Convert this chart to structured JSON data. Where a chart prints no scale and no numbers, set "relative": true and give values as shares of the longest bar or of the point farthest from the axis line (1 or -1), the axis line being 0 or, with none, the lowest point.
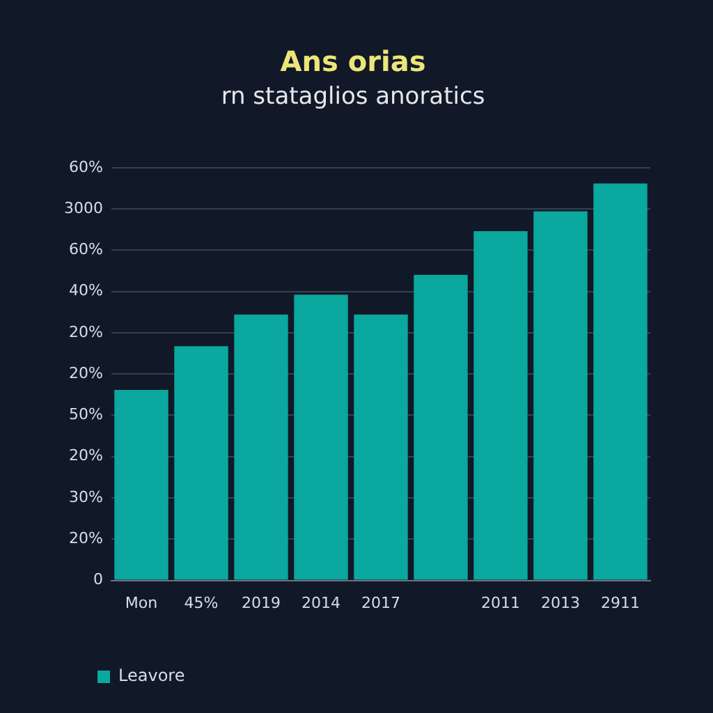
{
  "chart_data": {
    "type": "bar",
    "title": "Ans orias",
    "subtitle": "rn stataglios anoratics",
    "categories": [
      "Mon",
      "45%",
      "2019",
      "2014",
      "2017",
      null,
      "2011",
      "2013",
      "2911"
    ],
    "series": [
      {
        "name": "Leavore",
        "color": "#0aa89f",
        "values": [
          0.48,
          0.59,
          0.67,
          0.72,
          0.67,
          0.77,
          0.88,
          0.93,
          1
        ]
      }
    ],
    "relative": true,
    "annotations": [
      "60%",
      "3000",
      "60%",
      "40%",
      "20%",
      "20%",
      "50%",
      "20%",
      "30%",
      "20%",
      "0"
    ],
    "grid": "y",
    "legend": "bottom left"
  }
}
